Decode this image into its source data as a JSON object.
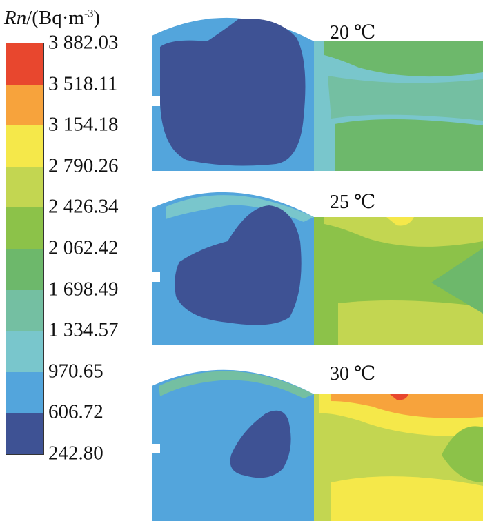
{
  "legend": {
    "title_var": "Rn",
    "title_unit_prefix": "/(Bq·m",
    "title_unit_sup": "-3",
    "title_unit_suffix": ")",
    "ticks": [
      "3 882.03",
      "3 518.11",
      "3 154.18",
      "2 790.26",
      "2 426.34",
      "2 062.42",
      "1 698.49",
      "1 334.57",
      "970.65",
      "606.72",
      "242.80"
    ],
    "colors": [
      "#e8472e",
      "#f7a33c",
      "#f5e84a",
      "#c3d651",
      "#8cc249",
      "#6db86b",
      "#74bfa2",
      "#79c6cc",
      "#53a5dc",
      "#3e5294"
    ]
  },
  "panels": [
    {
      "label": "20 ℃"
    },
    {
      "label": "25 ℃"
    },
    {
      "label": "30 ℃"
    }
  ],
  "chart_data": {
    "type": "heatmap",
    "title": "",
    "colorbar": {
      "label": "Rn/(Bq·m-3)",
      "min": 242.8,
      "max": 3882.03,
      "levels": [
        242.8,
        606.72,
        970.65,
        1334.57,
        1698.49,
        2062.42,
        2426.34,
        2790.26,
        3154.18,
        3518.11,
        3882.03
      ]
    },
    "panels": [
      "20 ℃",
      "25 ℃",
      "30 ℃"
    ]
  }
}
